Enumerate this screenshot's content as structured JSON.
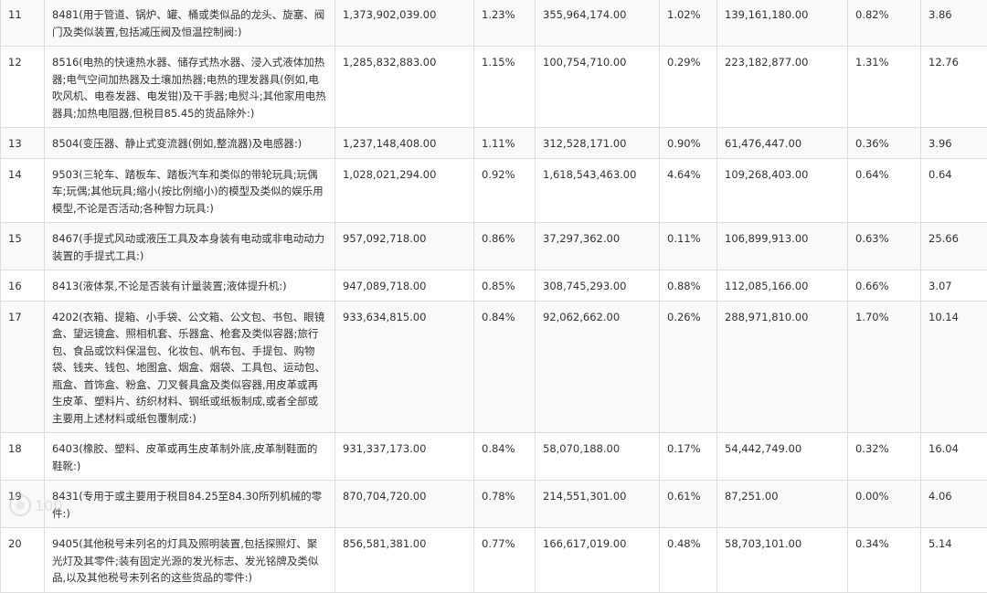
{
  "table": {
    "rows": [
      {
        "rank": "11",
        "desc": "8481(用于管道、锅炉、罐、桶或类似品的龙头、旋塞、阀门及类似装置,包括减压阀及恒温控制阀:)",
        "v1": "1,373,902,039.00",
        "p1": "1.23%",
        "v2": "355,964,174.00",
        "p2": "1.02%",
        "v3": "139,161,180.00",
        "p3": "0.82%",
        "ratio": "3.86"
      },
      {
        "rank": "12",
        "desc": "8516(电热的快速热水器、储存式热水器、浸入式液体加热器;电气空间加热器及土壤加热器;电热的理发器具(例如,电吹风机、电卷发器、电发钳)及干手器;电熨斗;其他家用电热器具;加热电阻器,但税目85.45的货品除外:)",
        "v1": "1,285,832,883.00",
        "p1": "1.15%",
        "v2": "100,754,710.00",
        "p2": "0.29%",
        "v3": "223,182,877.00",
        "p3": "1.31%",
        "ratio": "12.76"
      },
      {
        "rank": "13",
        "desc": "8504(变压器、静止式变流器(例如,整流器)及电感器:)",
        "v1": "1,237,148,408.00",
        "p1": "1.11%",
        "v2": "312,528,171.00",
        "p2": "0.90%",
        "v3": "61,476,447.00",
        "p3": "0.36%",
        "ratio": "3.96"
      },
      {
        "rank": "14",
        "desc": "9503(三轮车、踏板车、踏板汽车和类似的带轮玩具;玩偶车;玩偶;其他玩具;缩小(按比例缩小)的模型及类似的娱乐用模型,不论是否活动;各种智力玩具:)",
        "v1": "1,028,021,294.00",
        "p1": "0.92%",
        "v2": "1,618,543,463.00",
        "p2": "4.64%",
        "v3": "109,268,403.00",
        "p3": "0.64%",
        "ratio": "0.64"
      },
      {
        "rank": "15",
        "desc": "8467(手提式风动或液压工具及本身装有电动或非电动动力装置的手提式工具:)",
        "v1": "957,092,718.00",
        "p1": "0.86%",
        "v2": "37,297,362.00",
        "p2": "0.11%",
        "v3": "106,899,913.00",
        "p3": "0.63%",
        "ratio": "25.66"
      },
      {
        "rank": "16",
        "desc": "8413(液体泵,不论是否装有计量装置;液体提升机:)",
        "v1": "947,089,718.00",
        "p1": "0.85%",
        "v2": "308,745,293.00",
        "p2": "0.88%",
        "v3": "112,085,166.00",
        "p3": "0.66%",
        "ratio": "3.07"
      },
      {
        "rank": "17",
        "desc": "4202(衣箱、提箱、小手袋、公文箱、公文包、书包、眼镜盒、望远镜盒、照相机套、乐器盒、枪套及类似容器;旅行包、食品或饮料保温包、化妆包、帆布包、手提包、购物袋、钱夹、钱包、地图盒、烟盒、烟袋、工具包、运动包、瓶盒、首饰盒、粉盒、刀叉餐具盒及类似容器,用皮革或再生皮革、塑料片、纺织材料、钢纸或纸板制成,或者全部或主要用上述材料或纸包覆制成:)",
        "v1": "933,634,815.00",
        "p1": "0.84%",
        "v2": "92,062,662.00",
        "p2": "0.26%",
        "v3": "288,971,810.00",
        "p3": "1.70%",
        "ratio": "10.14"
      },
      {
        "rank": "18",
        "desc": "6403(橡胶、塑料、皮革或再生皮革制外底,皮革制鞋面的鞋靴:)",
        "v1": "931,337,173.00",
        "p1": "0.84%",
        "v2": "58,070,188.00",
        "p2": "0.17%",
        "v3": "54,442,749.00",
        "p3": "0.32%",
        "ratio": "16.04"
      },
      {
        "rank": "19",
        "desc": "8431(专用于或主要用于税目84.25至84.30所列机械的零件:)",
        "v1": "870,704,720.00",
        "p1": "0.78%",
        "v2": "214,551,301.00",
        "p2": "0.61%",
        "v3": "87,251.00",
        "p3": "0.00%",
        "ratio": "4.06"
      },
      {
        "rank": "20",
        "desc": "9405(其他税号未列名的灯具及照明装置,包括探照灯、聚光灯及其零件;装有固定光源的发光标志、发光铭牌及类似品,以及其他税号未列名的这些货品的零件:)",
        "v1": "856,581,381.00",
        "p1": "0.77%",
        "v2": "166,617,019.00",
        "p2": "0.48%",
        "v3": "58,703,101.00",
        "p3": "0.34%",
        "ratio": "5.14"
      }
    ]
  },
  "watermark": {
    "text": "100"
  }
}
